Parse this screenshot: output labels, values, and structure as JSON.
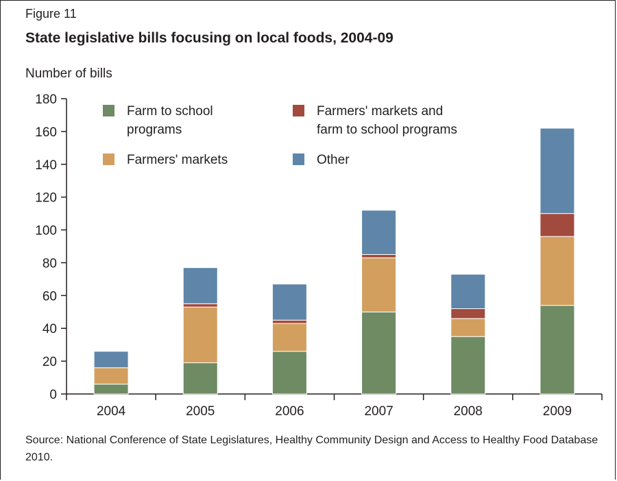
{
  "figure_label": "Figure 11",
  "title": "State legislative bills focusing on local foods, 2004-09",
  "source": "Source:  National Conference of State Legislatures, Healthy Community Design and Access to Healthy Food Database  2010.",
  "chart_data": {
    "type": "bar",
    "stacked": true,
    "ylabel": "Number of bills",
    "xlabel": "",
    "ylim": [
      0,
      180
    ],
    "yticks": [
      0,
      20,
      40,
      60,
      80,
      100,
      120,
      140,
      160,
      180
    ],
    "categories": [
      "2004",
      "2005",
      "2006",
      "2007",
      "2008",
      "2009"
    ],
    "series": [
      {
        "name": "Farm to school programs",
        "legend_lines": [
          "Farm to school",
          "programs"
        ],
        "color": "#6e8b63",
        "values": [
          6,
          19,
          26,
          50,
          35,
          54
        ]
      },
      {
        "name": "Farmers' markets",
        "legend_lines": [
          "Farmers' markets"
        ],
        "color": "#d39f5e",
        "values": [
          10,
          34,
          17,
          33,
          11,
          42
        ]
      },
      {
        "name": "Farmers' markets and farm to school programs",
        "legend_lines": [
          "Farmers' markets and",
          "farm to school programs"
        ],
        "color": "#a24a3e",
        "values": [
          0,
          2,
          2,
          2,
          6,
          14
        ]
      },
      {
        "name": "Other",
        "legend_lines": [
          "Other"
        ],
        "color": "#5f86a8",
        "values": [
          10,
          22,
          22,
          27,
          21,
          52
        ]
      }
    ],
    "legend_placement": "top",
    "grid": false
  }
}
